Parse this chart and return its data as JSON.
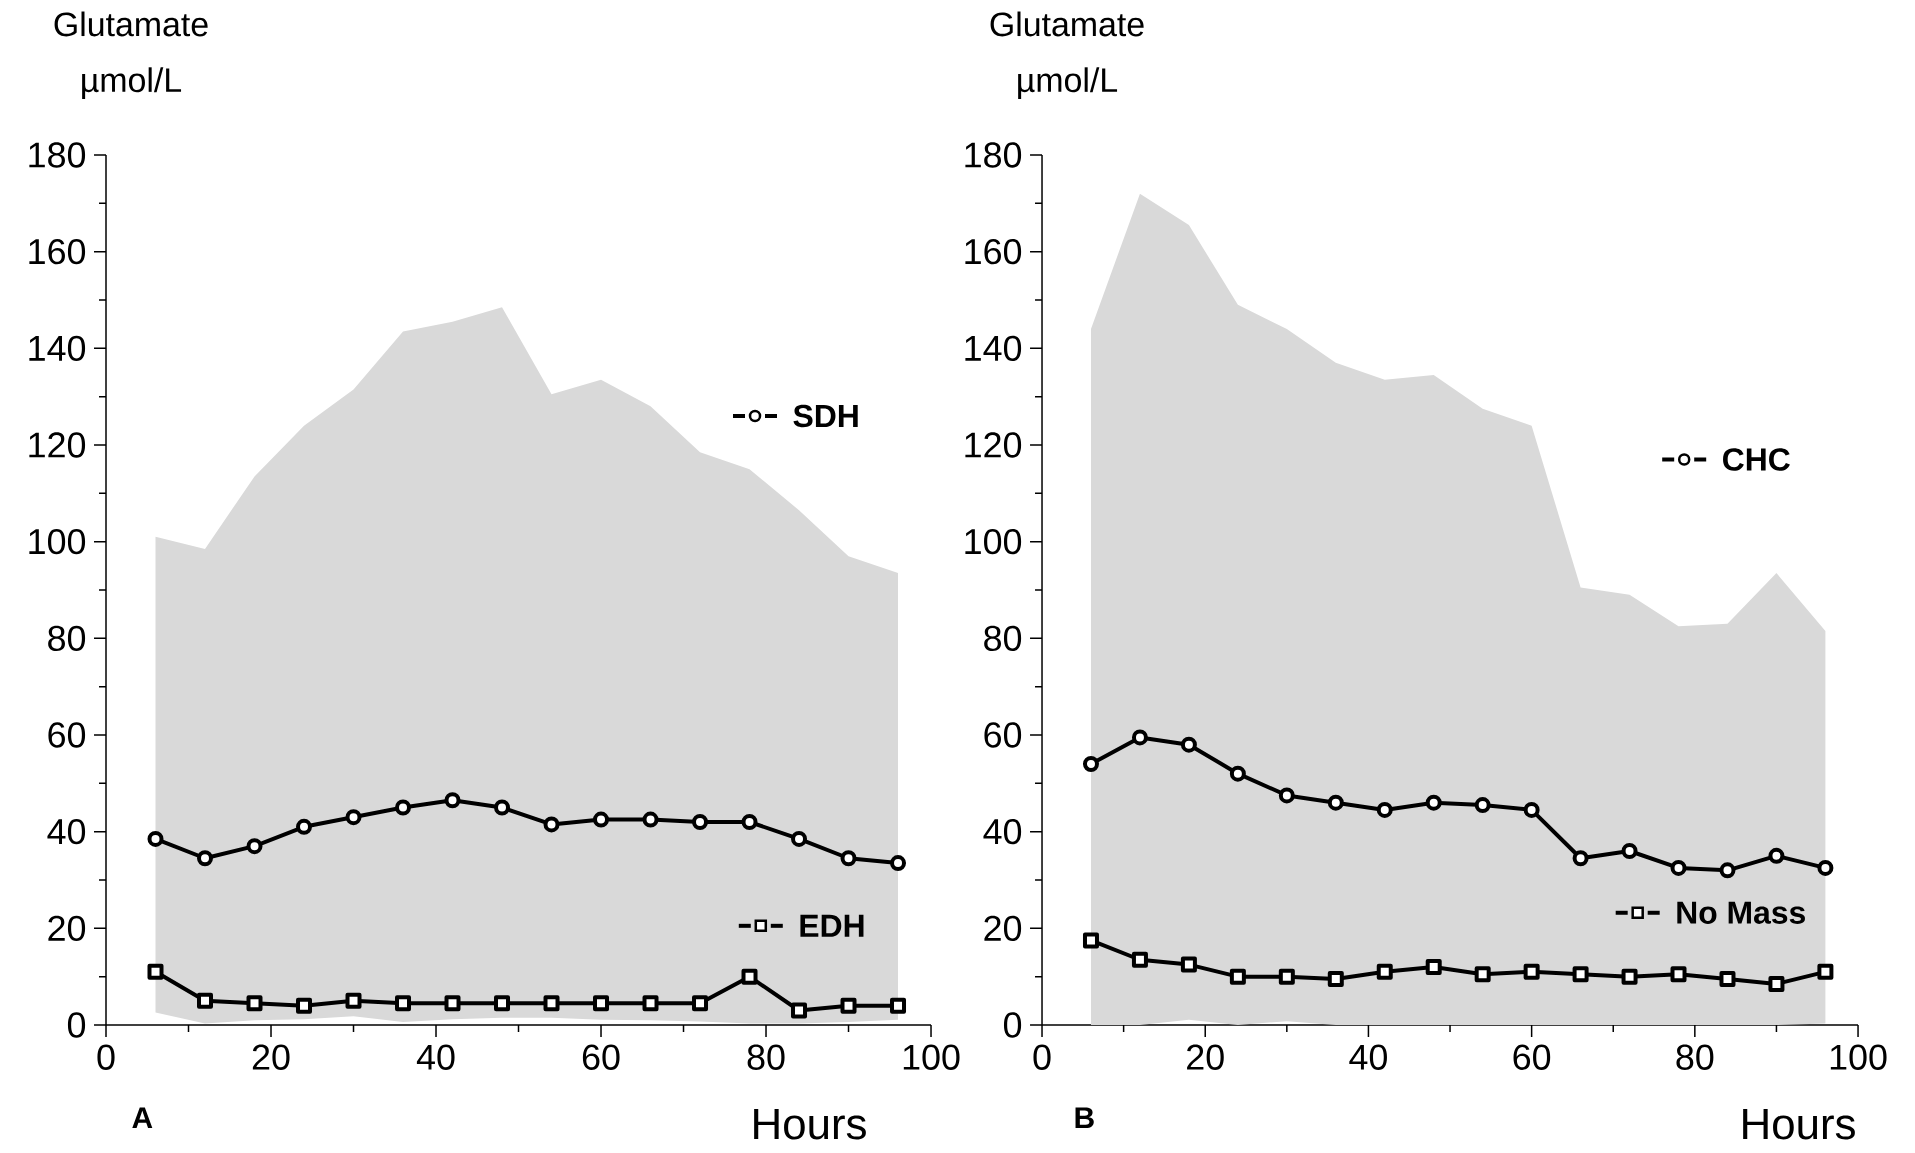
{
  "chart_data": [
    {
      "type": "line",
      "ylabel": "Glutamate µmol/L",
      "xlabel": "Hours",
      "annotations": [
        "A"
      ],
      "x": [
        6,
        12,
        18,
        24,
        30,
        36,
        42,
        48,
        54,
        60,
        66,
        72,
        78,
        84,
        90,
        96
      ],
      "xlim": [
        0,
        100
      ],
      "xticks": [
        0,
        20,
        40,
        60,
        80,
        100
      ],
      "ylim": [
        0,
        180
      ],
      "yticks": [
        0,
        20,
        40,
        60,
        80,
        100,
        120,
        140,
        160,
        180
      ],
      "line_style": "solid",
      "legend": "right",
      "series": [
        {
          "name": "SDH",
          "color": "#000000",
          "marker": "circle",
          "values": [
            38.5,
            34.5,
            37,
            41,
            43,
            45,
            46.5,
            45,
            41.5,
            42.5,
            42.5,
            42,
            42,
            38.5,
            34.5,
            33.5
          ],
          "lower": [
            2.6,
            0.3,
            1,
            1.2,
            1.8,
            0.6,
            1.2,
            1.5,
            1.5,
            1.1,
            1,
            0.7,
            0.3,
            0.3,
            0.6,
            1.1
          ],
          "upper": [
            101,
            98.5,
            113.5,
            124,
            131.5,
            143.5,
            145.5,
            148.5,
            130.5,
            133.5,
            128,
            118.5,
            115,
            106.5,
            97,
            93.5
          ]
        },
        {
          "name": "EDH",
          "color": "#000000",
          "marker": "square",
          "values": [
            11,
            5,
            4.5,
            4,
            5,
            4.5,
            4.5,
            4.5,
            4.5,
            4.5,
            4.5,
            4.5,
            10,
            3,
            4,
            4
          ]
        }
      ]
    },
    {
      "type": "line",
      "ylabel": "Glutamate µmol/L",
      "xlabel": "Hours",
      "annotations": [
        "B"
      ],
      "x": [
        6,
        12,
        18,
        24,
        30,
        36,
        42,
        48,
        54,
        60,
        66,
        72,
        78,
        84,
        90,
        96
      ],
      "xlim": [
        0,
        100
      ],
      "xticks": [
        0,
        20,
        40,
        60,
        80,
        100
      ],
      "ylim": [
        0,
        180
      ],
      "yticks": [
        0,
        20,
        40,
        60,
        80,
        100,
        120,
        140,
        160,
        180
      ],
      "line_style": "solid",
      "legend": "right",
      "series": [
        {
          "name": "CHC",
          "color": "#000000",
          "marker": "circle",
          "values": [
            54,
            59.5,
            58,
            52,
            47.5,
            46,
            44.5,
            46,
            45.5,
            44.5,
            34.5,
            36,
            32.5,
            32,
            35,
            32.5
          ],
          "lower": [
            0,
            0,
            1.1,
            0,
            0.8,
            0,
            0,
            0,
            0,
            0,
            0,
            0,
            0,
            0,
            0,
            0.3
          ],
          "upper": [
            144,
            172,
            165.5,
            149,
            144,
            137,
            133.5,
            134.5,
            127.5,
            124,
            90.5,
            89,
            82.5,
            83,
            93.5,
            81.5
          ]
        },
        {
          "name": "No Mass",
          "color": "#000000",
          "marker": "square",
          "values": [
            17.5,
            13.5,
            12.5,
            10,
            10,
            9.5,
            11,
            12,
            10.5,
            11,
            10.5,
            10,
            10.5,
            9.5,
            8.5,
            11
          ]
        }
      ]
    }
  ]
}
